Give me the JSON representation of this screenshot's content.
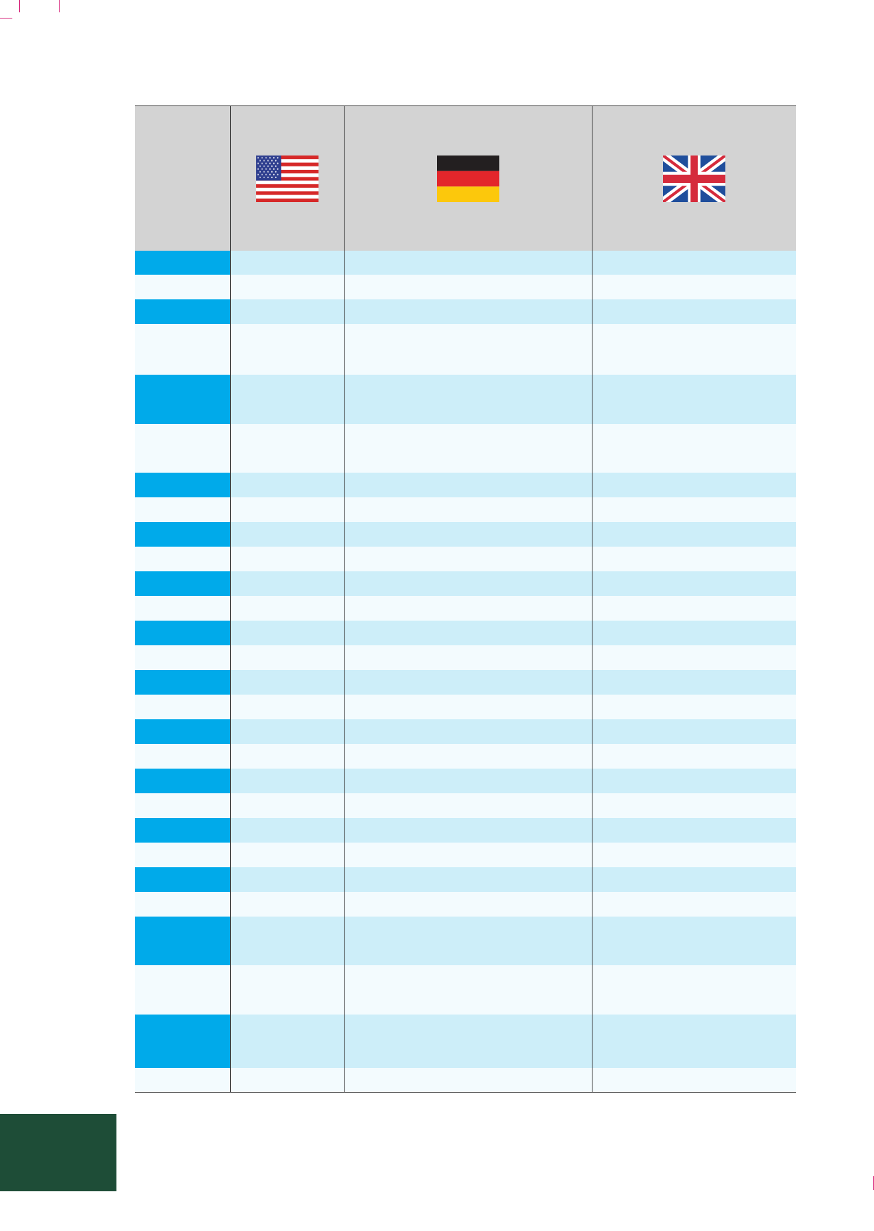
{
  "header": {
    "flags": [
      {
        "icon": "us-flag-icon"
      },
      {
        "icon": "germany-flag-icon"
      },
      {
        "icon": "uk-flag-icon"
      }
    ]
  },
  "table": {
    "rows": [
      {
        "cells": [
          "",
          "",
          "",
          ""
        ]
      },
      {
        "cells": [
          "",
          "",
          "",
          ""
        ]
      },
      {
        "cells": [
          "",
          "",
          "",
          ""
        ]
      },
      {
        "cells": [
          "",
          "",
          "",
          ""
        ]
      },
      {
        "cells": [
          "",
          "",
          "",
          ""
        ]
      },
      {
        "cells": [
          "",
          "",
          "",
          ""
        ]
      },
      {
        "cells": [
          "",
          "",
          "",
          ""
        ]
      },
      {
        "cells": [
          "",
          "",
          "",
          ""
        ]
      },
      {
        "cells": [
          "",
          "",
          "",
          ""
        ]
      },
      {
        "cells": [
          "",
          "",
          "",
          ""
        ]
      },
      {
        "cells": [
          "",
          "",
          "",
          ""
        ]
      },
      {
        "cells": [
          "",
          "",
          "",
          ""
        ]
      },
      {
        "cells": [
          "",
          "",
          "",
          ""
        ]
      },
      {
        "cells": [
          "",
          "",
          "",
          ""
        ]
      },
      {
        "cells": [
          "",
          "",
          "",
          ""
        ]
      },
      {
        "cells": [
          "",
          "",
          "",
          ""
        ]
      },
      {
        "cells": [
          "",
          "",
          "",
          ""
        ]
      },
      {
        "cells": [
          "",
          "",
          "",
          ""
        ]
      },
      {
        "cells": [
          "",
          "",
          "",
          ""
        ]
      },
      {
        "cells": [
          "",
          "",
          "",
          ""
        ]
      },
      {
        "cells": [
          "",
          "",
          "",
          ""
        ]
      },
      {
        "cells": [
          "",
          "",
          "",
          ""
        ]
      },
      {
        "cells": [
          "",
          "",
          "",
          ""
        ]
      },
      {
        "cells": [
          "",
          "",
          "",
          ""
        ]
      },
      {
        "cells": [
          "",
          "",
          "",
          ""
        ]
      },
      {
        "cells": [
          "",
          "",
          "",
          ""
        ]
      },
      {
        "cells": [
          "",
          "",
          "",
          ""
        ]
      },
      {
        "cells": [
          "",
          "",
          "",
          ""
        ]
      }
    ]
  },
  "colors": {
    "key_column": "#00aaea",
    "row_light_blue": "#cdeef9",
    "row_pale": "#f3fbfe",
    "header_gray": "#d3d3d3",
    "corner_block": "#1e4d37",
    "crop_marks": "#d6237a"
  }
}
